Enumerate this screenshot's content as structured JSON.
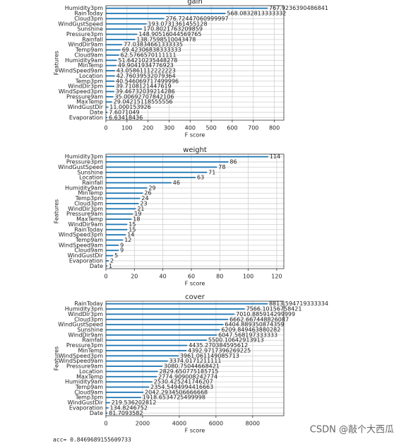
{
  "chart_data": [
    {
      "type": "barh",
      "title": "gain",
      "xlabel": "F score",
      "ylabel": "Features",
      "color": "#1f77b4",
      "grid": true,
      "categories": [
        "Humidity3pm",
        "RainToday",
        "Cloud3pm",
        "WindGustSpeed",
        "Sunshine",
        "Pressure3pm",
        "Rainfall",
        "WindDir9am",
        "Temp9am",
        "Cloud9am",
        "Humidity9am",
        "MinTemp",
        "WindSpeed9am",
        "Location",
        "Temp3pm",
        "WindDir3pm",
        "WindSpeed3pm",
        "Pressure9am",
        "MaxTemp",
        "WindGustDir",
        "Date",
        "Evaporation"
      ],
      "values": [
        767.9236390486841,
        568.0832813333332,
        276.72447060999997,
        193.0731361455128,
        170.8021763209859,
        148.90516044569765,
        138.7598510043478,
        77.03834661333335,
        69.42306838333333,
        62.5766570111111,
        51.64210235448278,
        49.9041934776923,
        43.05861112222223,
        42.76039532079364,
        40.546069717499996,
        39.7108121447619,
        39.46732039214286,
        35.00692707842106,
        29.04215118555556,
        11.000153926,
        7.6071049,
        6.63418436
      ],
      "xlim": [
        0,
        845
      ],
      "xticks": [
        0,
        100,
        200,
        300,
        400,
        500,
        600,
        700,
        800
      ]
    },
    {
      "type": "barh",
      "title": "weight",
      "xlabel": "F score",
      "ylabel": "Features",
      "color": "#1f77b4",
      "grid": true,
      "categories": [
        "Humidity3pm",
        "Pressure3pm",
        "WindGustSpeed",
        "Sunshine",
        "Location",
        "Rainfall",
        "Humidity9am",
        "MinTemp",
        "Temp3pm",
        "Cloud3pm",
        "WindDir3pm",
        "Pressure9am",
        "MaxTemp",
        "WindDir9am",
        "RainToday",
        "WindSpeed3pm",
        "Temp9am",
        "WindSpeed9am",
        "Cloud9am",
        "WindGustDir",
        "Evaporation",
        "Date"
      ],
      "values": [
        114,
        86,
        78,
        71,
        63,
        46,
        29,
        26,
        24,
        23,
        21,
        19,
        18,
        15,
        15,
        14,
        12,
        9,
        9,
        5,
        2,
        1
      ],
      "xlim": [
        0,
        125
      ],
      "xticks": [
        0,
        20,
        40,
        60,
        80,
        100,
        120
      ]
    },
    {
      "type": "barh",
      "title": "cover",
      "xlabel": "F score",
      "ylabel": "Features",
      "color": "#1f77b4",
      "grid": true,
      "categories": [
        "RainToday",
        "Humidity3pm",
        "WindDir3pm",
        "Cloud3pm",
        "WindGustSpeed",
        "Sunshine",
        "WindDir9am",
        "Rainfall",
        "Pressure3pm",
        "MinTemp",
        "WindSpeed3pm",
        "WindSpeed9am",
        "Pressure9am",
        "Location",
        "MaxTemp",
        "Humidity9am",
        "Temp9am",
        "Cloud9am",
        "Temp3pm",
        "WindGustDir",
        "Evaporation",
        "Date"
      ],
      "values": [
        8813.594719333334,
        7566.10156758421,
        7010.885914299999,
        6662.667448826087,
        6404.889350874359,
        6209.849463880282,
        6047.568197333333,
        5500.10642913913,
        4435.270384595612,
        4392.9717396269225,
        3961.061149085713,
        3374.0171211111,
        3080.75044668421,
        2829.650775185715,
        2774.909008242774,
        2530.425241746207,
        2354.5494994416663,
        2042.2934506666668,
        1918.6534725499998,
        219.536202812,
        134.8246752,
        81.7093582
      ],
      "xlim": [
        0,
        9700
      ],
      "xticks": [
        0,
        2000,
        4000,
        6000,
        8000
      ]
    }
  ],
  "footer": "acc= 0.8469689155609733",
  "watermark": "CSDN @敲个大西瓜"
}
